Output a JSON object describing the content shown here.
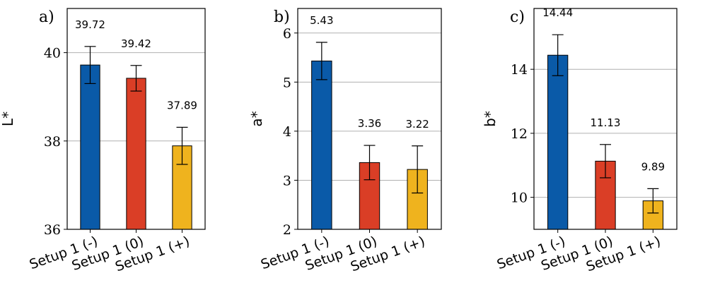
{
  "chart_data": [
    {
      "type": "bar",
      "panel": "a)",
      "ylabel": "L*",
      "ylim": [
        36,
        41
      ],
      "yticks": [
        36,
        38,
        40
      ],
      "grid": "horizontal",
      "categories": [
        "Setup 1 (-)",
        "Setup 1 (0)",
        "Setup 1 (+)"
      ],
      "values": [
        39.72,
        39.42,
        37.89
      ],
      "errors": [
        0.42,
        0.29,
        0.42
      ],
      "labels": [
        "39.72",
        "39.42",
        "37.89"
      ],
      "colors": [
        "#0a5aa8",
        "#da3e26",
        "#efb31e"
      ]
    },
    {
      "type": "bar",
      "panel": "b)",
      "ylabel": "a*",
      "ylim": [
        2,
        6.5
      ],
      "yticks": [
        2,
        3,
        4,
        5,
        6
      ],
      "grid": "horizontal",
      "categories": [
        "Setup 1 (-)",
        "Setup 1 (0)",
        "Setup 1 (+)"
      ],
      "values": [
        5.43,
        3.36,
        3.22
      ],
      "errors": [
        0.38,
        0.35,
        0.48
      ],
      "labels": [
        "5.43",
        "3.36",
        "3.22"
      ],
      "colors": [
        "#0a5aa8",
        "#da3e26",
        "#efb31e"
      ]
    },
    {
      "type": "bar",
      "panel": "c)",
      "ylabel": "b*",
      "ylim": [
        9,
        15.9
      ],
      "yticks": [
        10,
        12,
        14
      ],
      "grid": "horizontal",
      "categories": [
        "Setup 1 (-)",
        "Setup 1 (0)",
        "Setup 1 (+)"
      ],
      "values": [
        14.44,
        11.13,
        9.89
      ],
      "errors": [
        0.64,
        0.52,
        0.38
      ],
      "labels": [
        "14.44",
        "11.13",
        "9.89"
      ],
      "colors": [
        "#0a5aa8",
        "#da3e26",
        "#efb31e"
      ]
    }
  ]
}
